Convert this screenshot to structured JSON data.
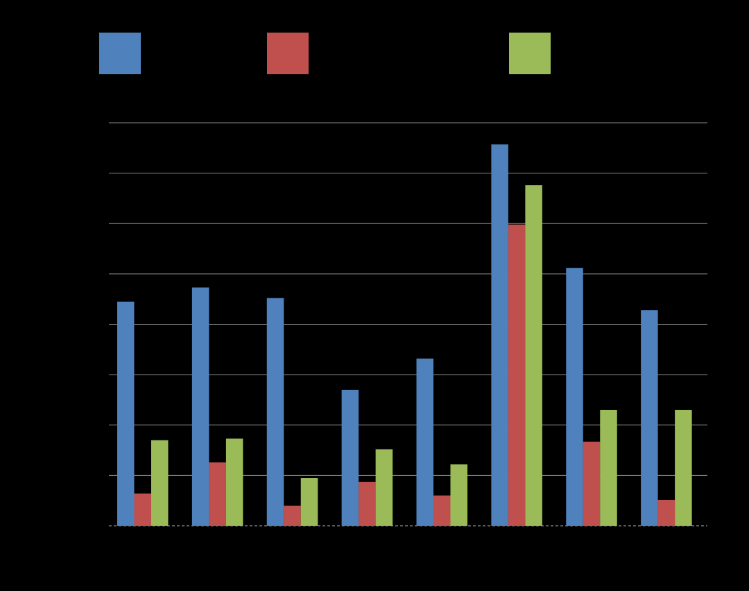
{
  "chart_data": {
    "type": "bar",
    "categories": [
      "",
      "",
      "",
      "",
      "",
      "",
      "",
      ""
    ],
    "series": [
      {
        "color": "#4f81bd",
        "values": [
          4.45,
          4.73,
          4.52,
          2.7,
          3.32,
          7.57,
          5.12,
          4.28
        ]
      },
      {
        "color": "#c0504d",
        "values": [
          0.64,
          1.26,
          0.4,
          0.87,
          0.6,
          5.98,
          1.67,
          0.51
        ]
      },
      {
        "color": "#9bbb59",
        "values": [
          1.7,
          1.73,
          0.95,
          1.52,
          1.22,
          6.76,
          2.3,
          2.3
        ]
      }
    ],
    "ylim": [
      0,
      8
    ],
    "grid": true,
    "legend": "top",
    "colors": {
      "background": "#000000",
      "gridline": "#8c8c8c"
    }
  }
}
